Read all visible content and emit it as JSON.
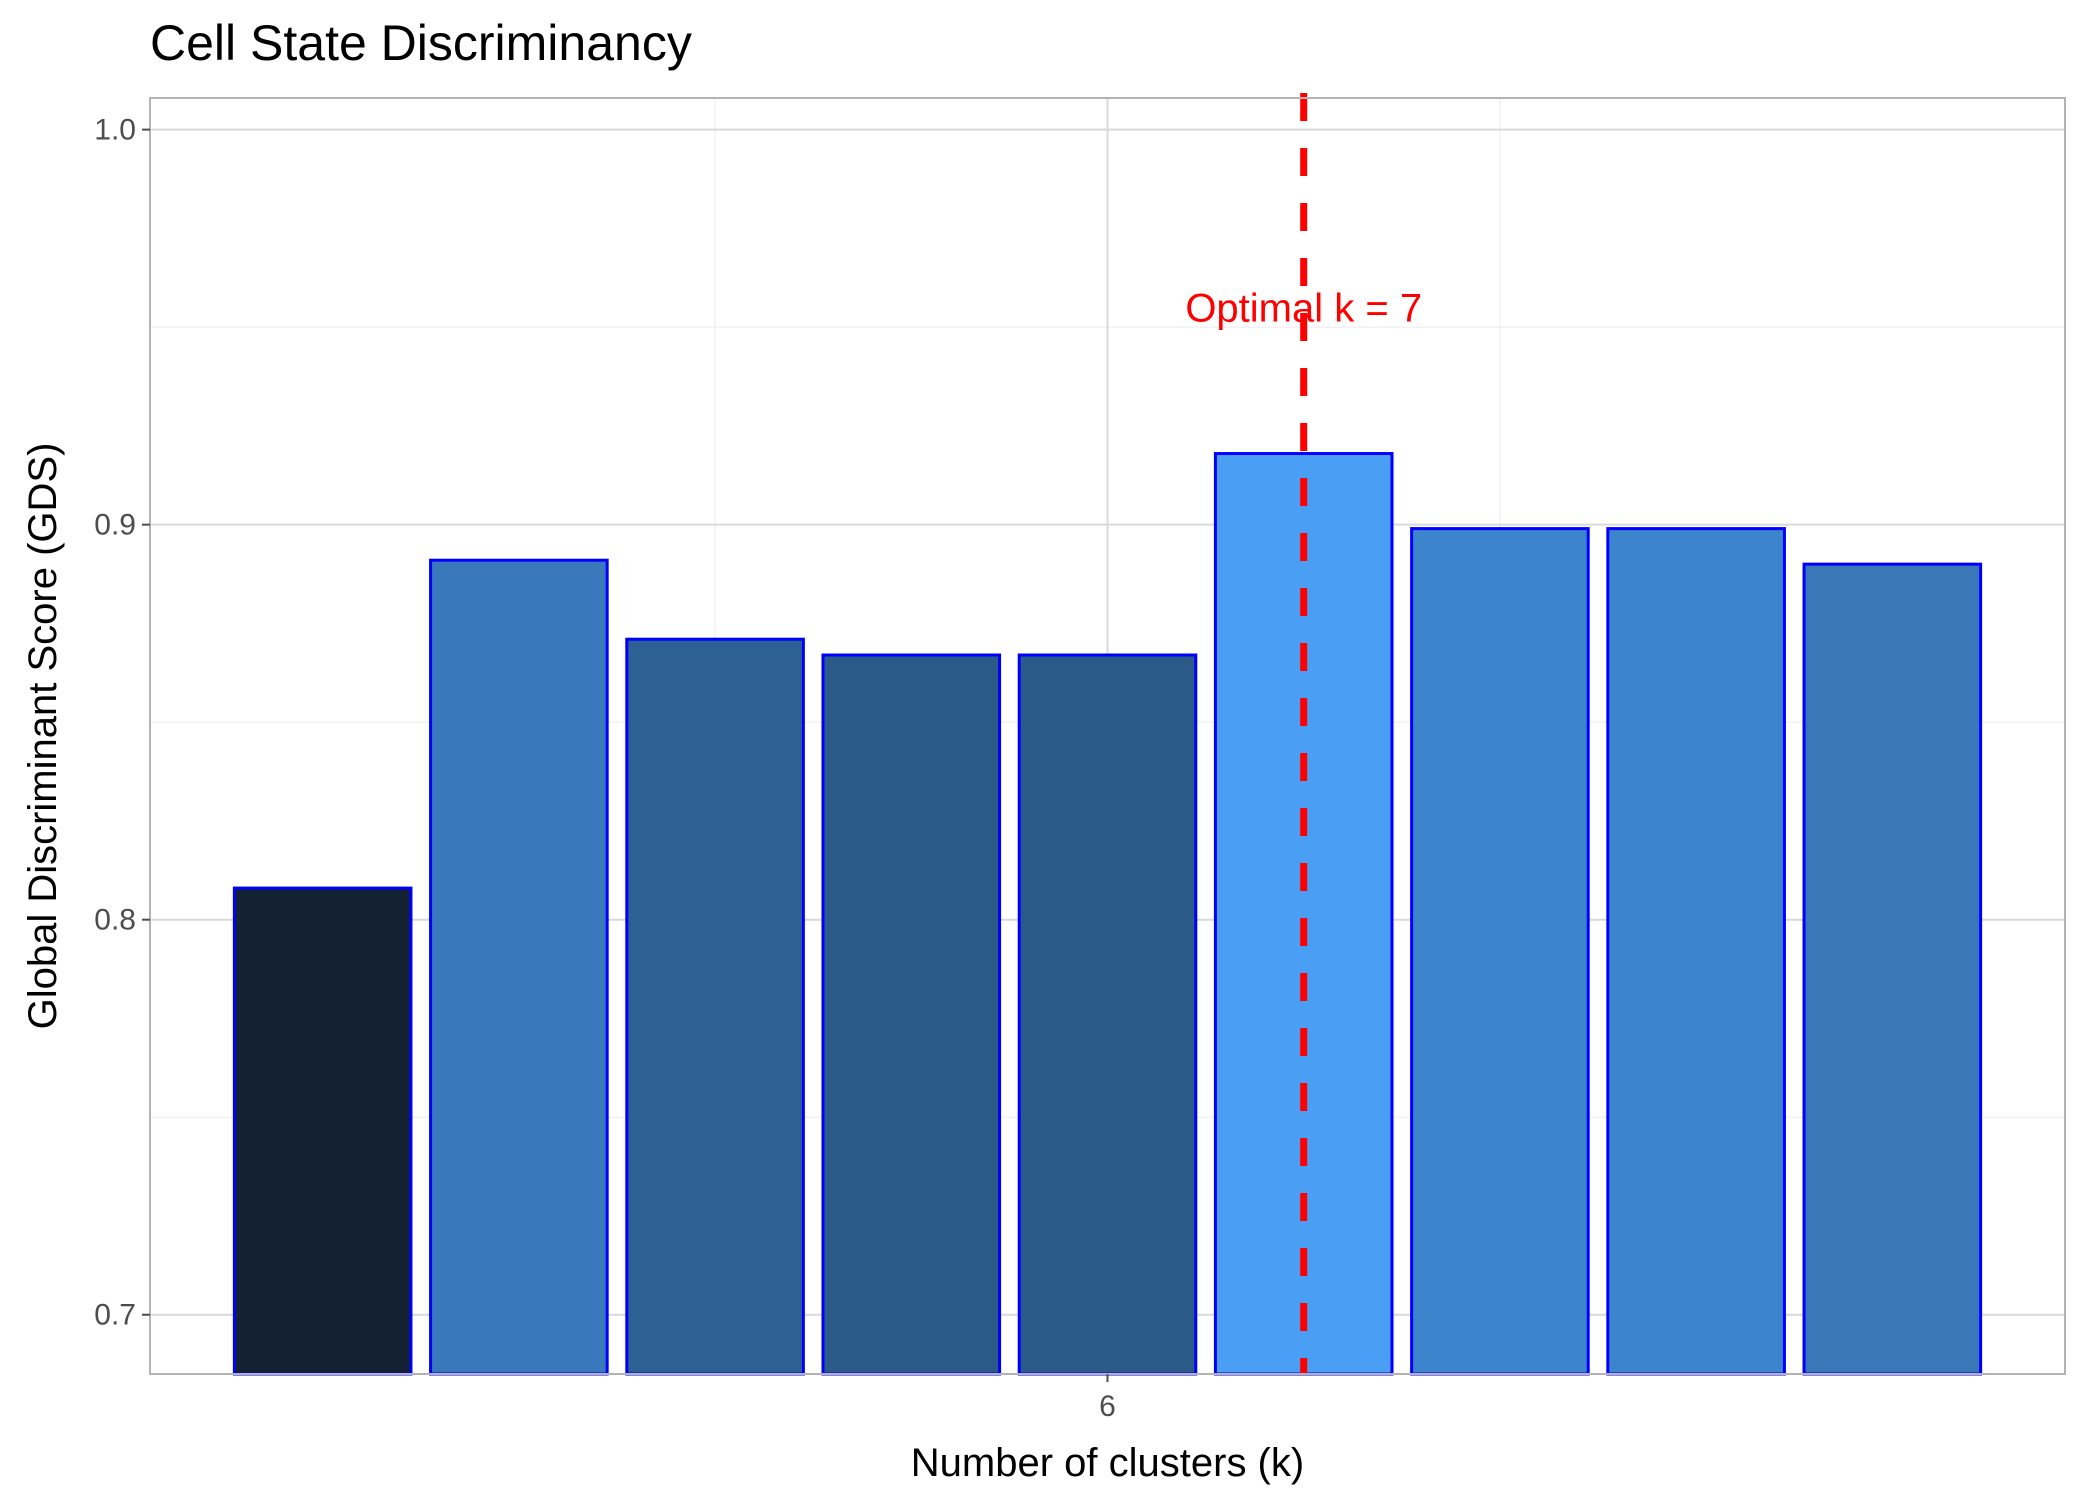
{
  "chart_data": {
    "type": "bar",
    "title": "Cell State Discriminancy",
    "xlabel": "Number of clusters (k)",
    "ylabel": "Global Discriminant Score (GDS)",
    "x": [
      2,
      3,
      4,
      5,
      6,
      7,
      8,
      9,
      10
    ],
    "values": [
      0.808,
      0.891,
      0.871,
      0.867,
      0.867,
      0.918,
      0.899,
      0.899,
      0.89
    ],
    "xlim": [
      1.12,
      10.88
    ],
    "ylim": [
      0.685,
      1.008
    ],
    "x_ticks": [
      6
    ],
    "x_tick_labels": [
      "6"
    ],
    "y_ticks": [
      0.7,
      0.8,
      0.9,
      1.0
    ],
    "y_tick_labels": [
      "0.7",
      "0.8",
      "0.9",
      "1.0"
    ],
    "x_minor_gridlines": [
      4,
      8
    ],
    "y_minor_gridlines": [
      0.75,
      0.85,
      0.95
    ],
    "grid": true,
    "bar_fill_colors": [
      "#132132",
      "#3978bb",
      "#2d6194",
      "#2b5a88",
      "#2b5a88",
      "#4a9ff5",
      "#3c84cb",
      "#3c84cb",
      "#3977b9"
    ],
    "bar_outline_color": "#0000ff",
    "annotation": {
      "text": "Optimal k = 7",
      "x": 7,
      "color": "#ff0000",
      "line_style": "dashed"
    }
  }
}
